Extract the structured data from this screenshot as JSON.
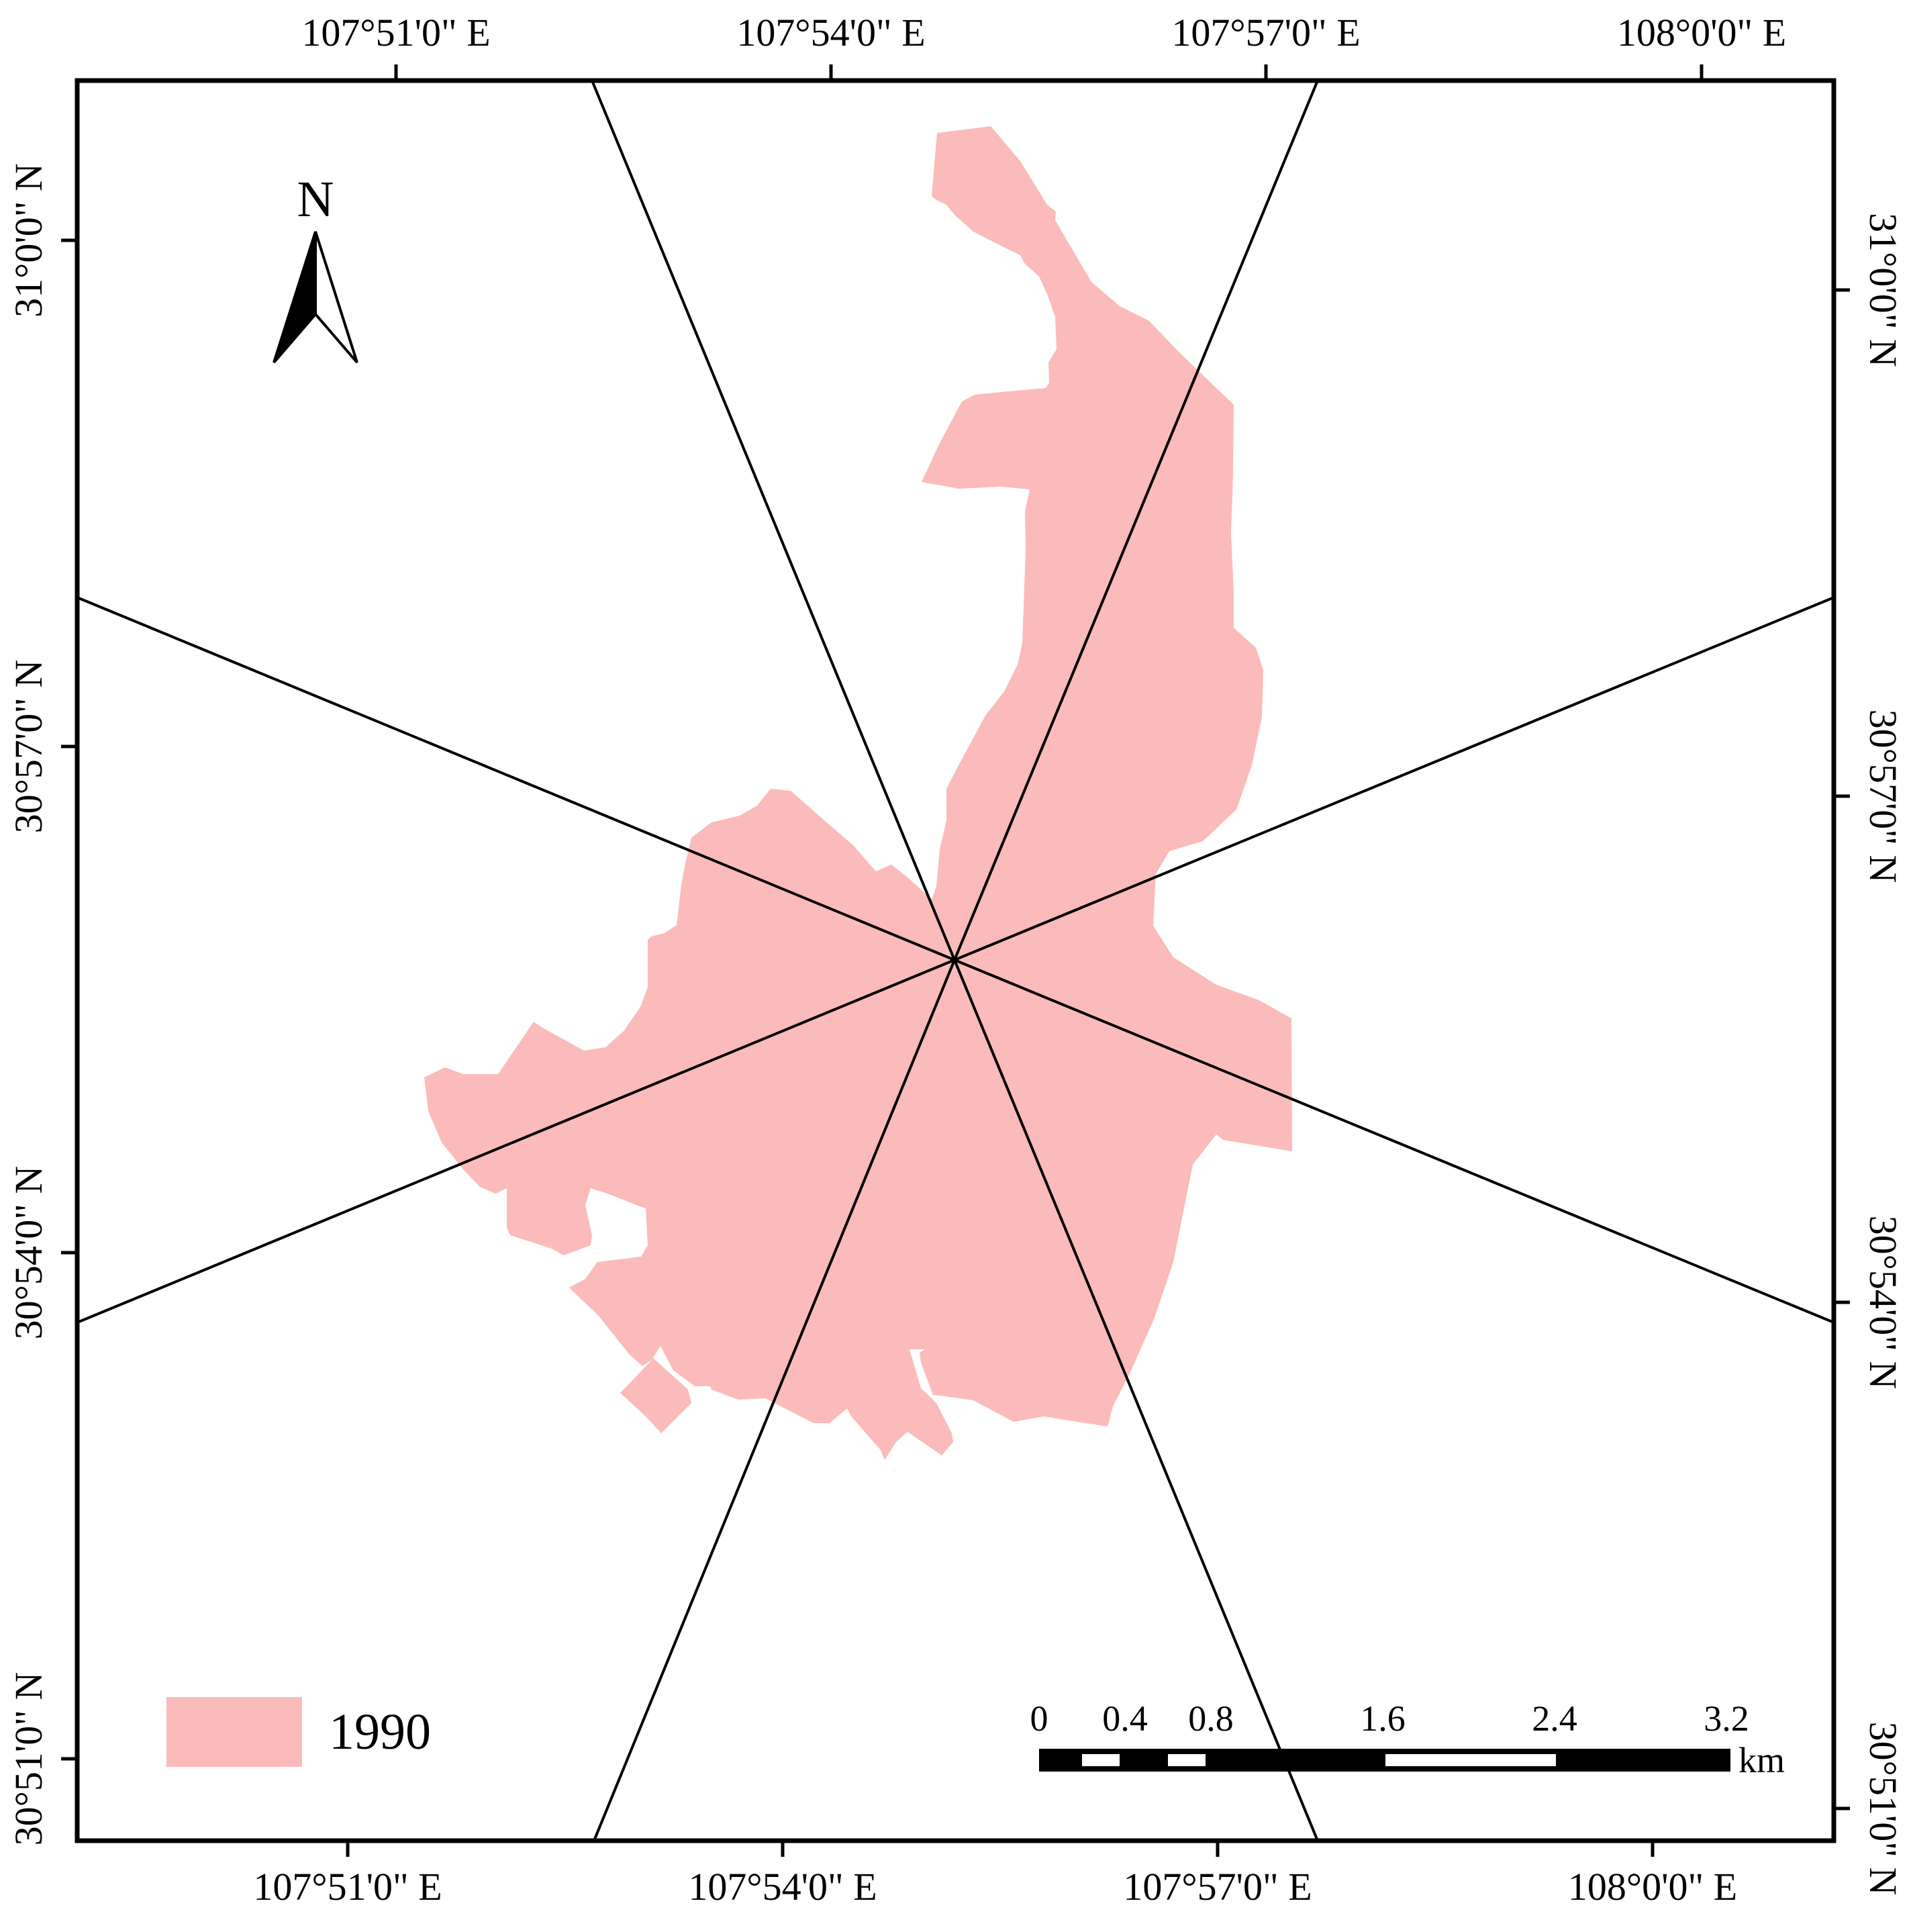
{
  "map": {
    "top_lon_labels": [
      "107°51'0\" E",
      "107°54'0\" E",
      "107°57'0\" E",
      "108°0'0\" E"
    ],
    "bottom_lon_labels": [
      "107°51'0\" E",
      "107°54'0\" E",
      "107°57'0\" E",
      "108°0'0\" E"
    ],
    "left_lat_labels": [
      "31°0'0\" N",
      "30°57'0\" N",
      "30°54'0\" N",
      "30°51'0\" N"
    ],
    "right_lat_labels": [
      "31°0'0\" N",
      "30°57'0\" N",
      "30°54'0\" N",
      "30°51'0\" N"
    ],
    "north_arrow": {
      "label": "N",
      "icon": "north-arrow-icon"
    },
    "legend": {
      "label": "1990",
      "color": "#fbbbbb"
    },
    "scale_bar": {
      "ticks": [
        "0",
        "0.4",
        "0.8",
        "1.6",
        "2.4",
        "3.2"
      ],
      "unit": "km"
    },
    "colors": {
      "urban_area": "#fbbbbb",
      "lines": "#000000"
    }
  }
}
